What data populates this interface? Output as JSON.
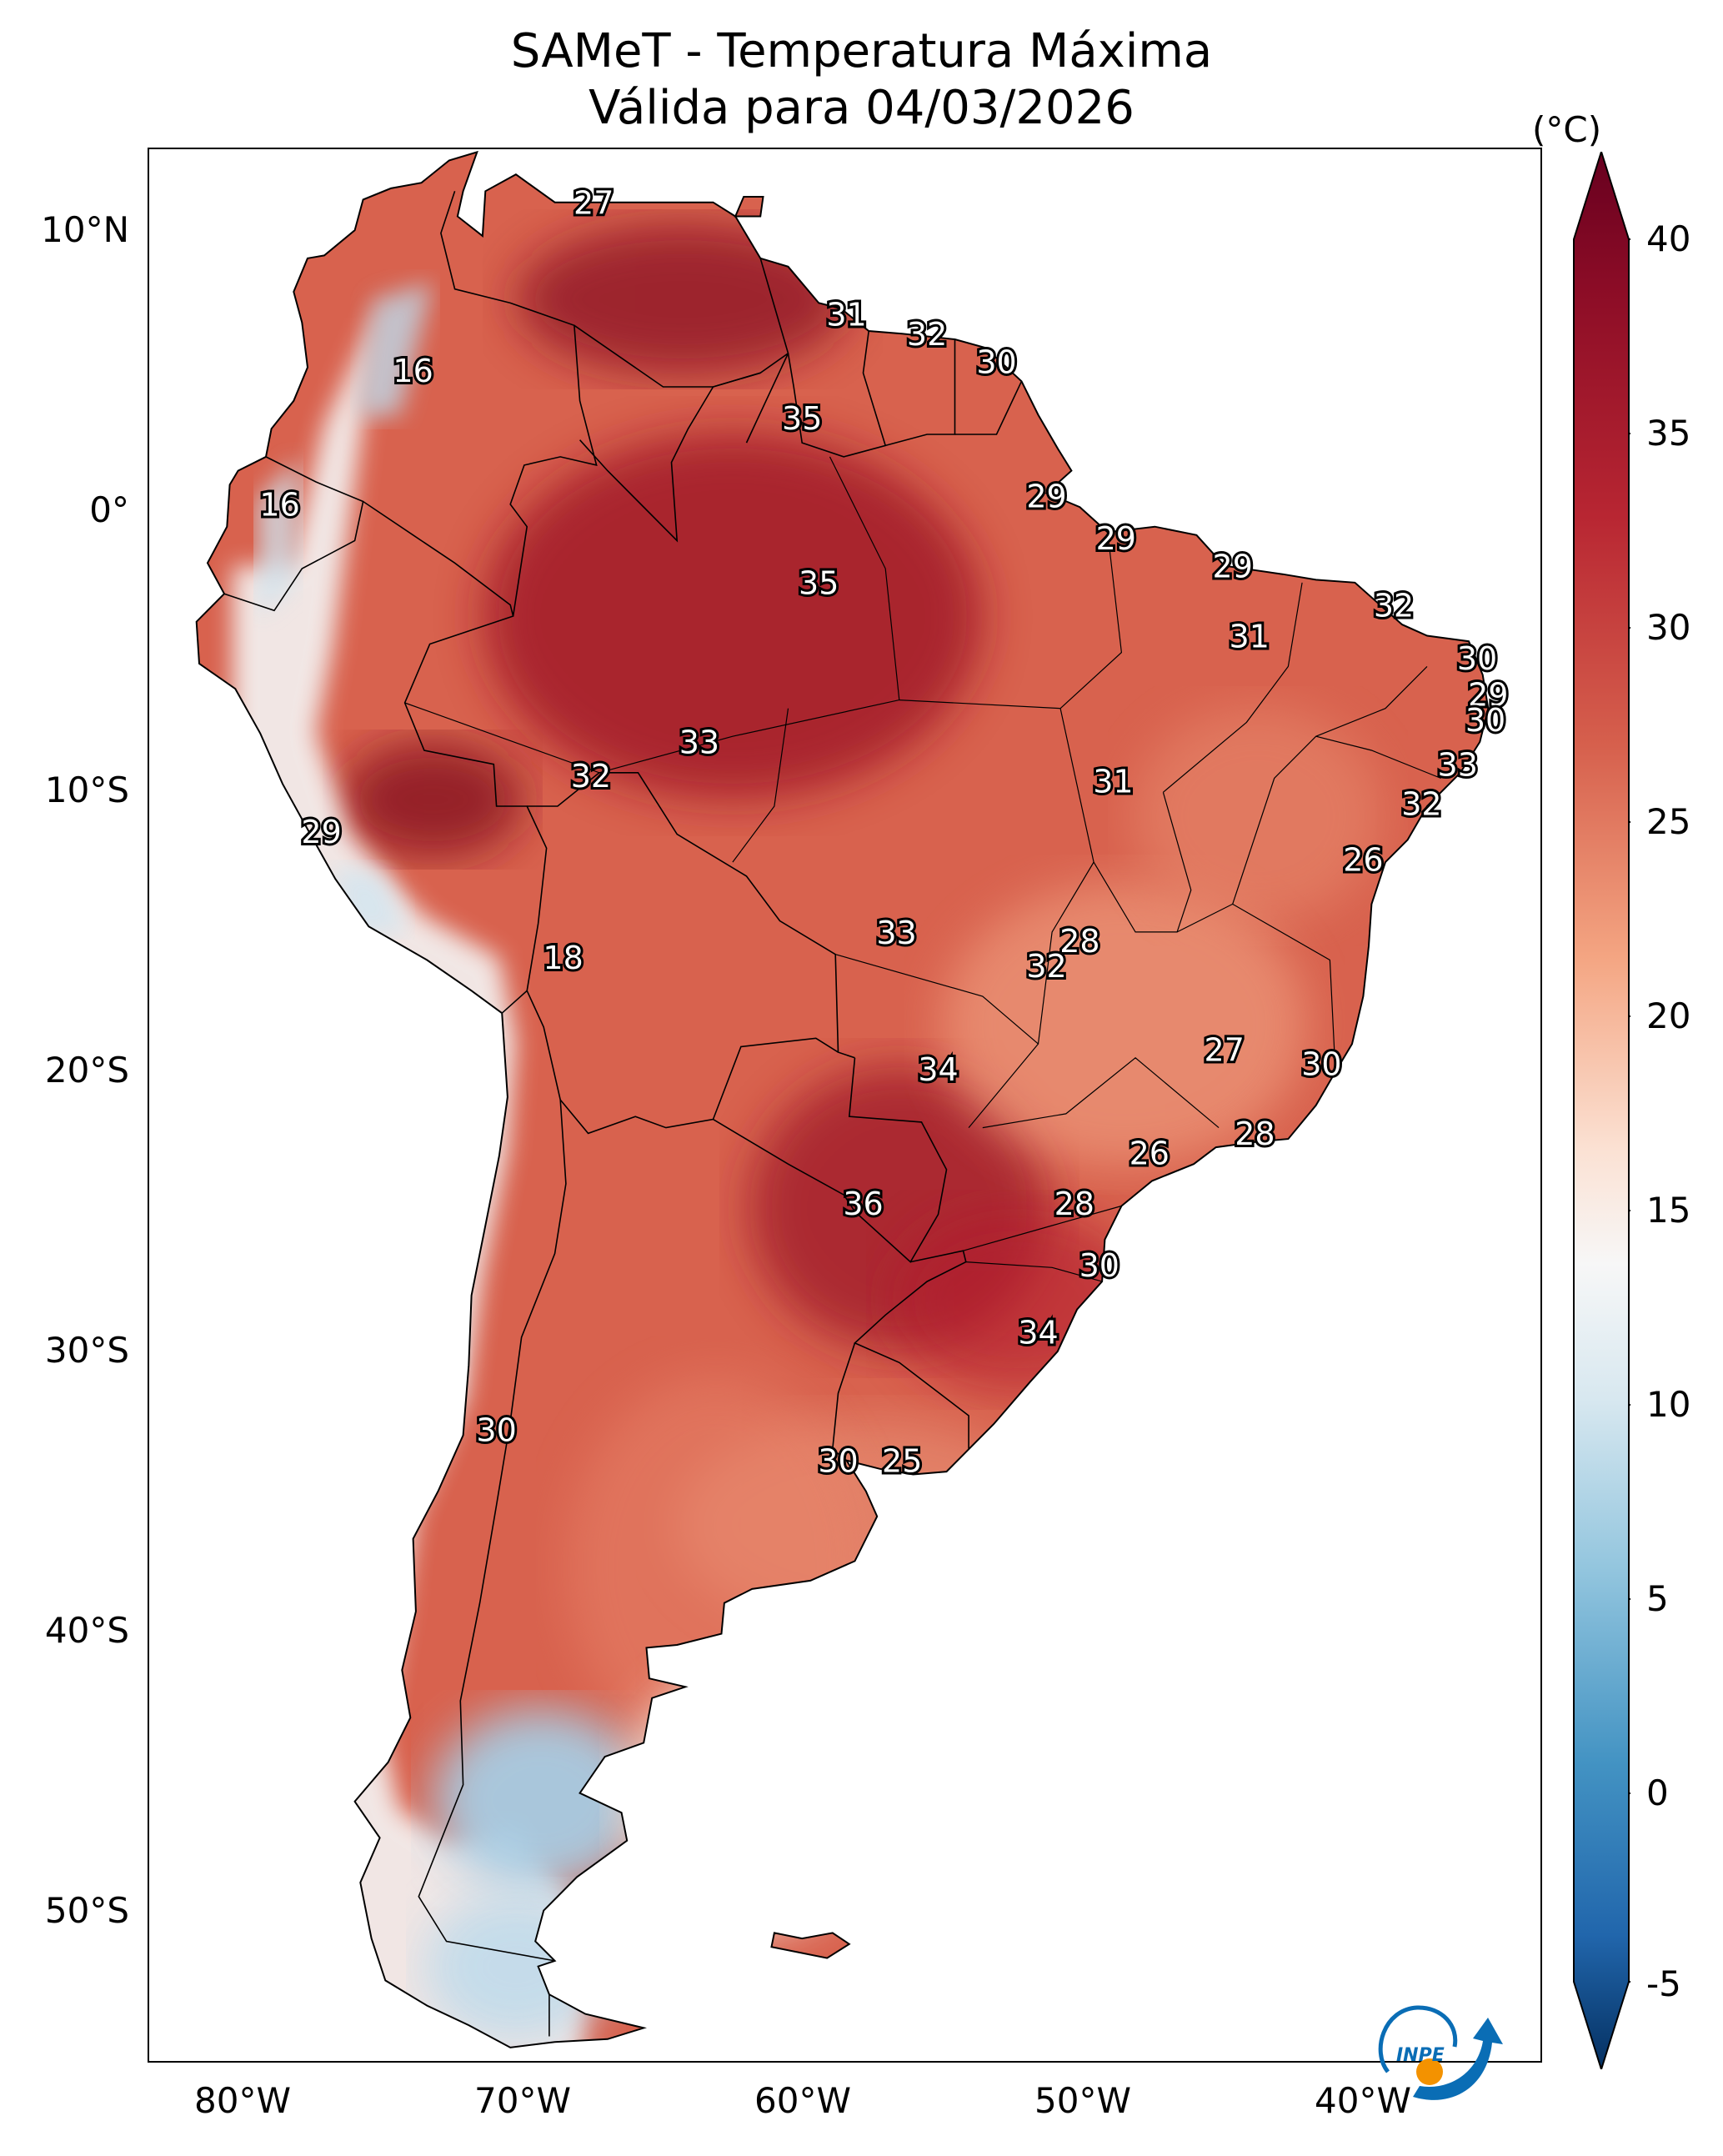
{
  "title": {
    "line1": "SAMeT - Temperatura Máxima",
    "line2": "Válida para 04/03/2026"
  },
  "axes": {
    "lat_labels": [
      "10°N",
      "0°",
      "10°S",
      "20°S",
      "30°S",
      "40°S",
      "50°S"
    ],
    "lon_labels": [
      "80°W",
      "70°W",
      "60°W",
      "50°W",
      "40°W"
    ]
  },
  "colorbar": {
    "unit": "(°C)",
    "ticks": [
      "40",
      "35",
      "30",
      "25",
      "20",
      "15",
      "10",
      "5",
      "0",
      "-5"
    ],
    "min": -7,
    "max": 41,
    "colors": {
      "hot": "#67001f",
      "warm": "#d6604d",
      "neutral": "#f7f7f7",
      "cool": "#4393c3",
      "cold": "#053061"
    }
  },
  "map": {
    "ocean_color": "#ffffff",
    "land_color": "#d8624e",
    "temperature_labels": [
      {
        "value": "27",
        "lon": -67,
        "lat": 10.5
      },
      {
        "value": "31",
        "lon": -57.9,
        "lat": 6.5
      },
      {
        "value": "32",
        "lon": -55,
        "lat": 5.8
      },
      {
        "value": "30",
        "lon": -52.5,
        "lat": 4.8
      },
      {
        "value": "16",
        "lon": -73.5,
        "lat": 4.5
      },
      {
        "value": "35",
        "lon": -59.5,
        "lat": 2.8
      },
      {
        "value": "29",
        "lon": -50.7,
        "lat": 0
      },
      {
        "value": "16",
        "lon": -78.3,
        "lat": -0.3
      },
      {
        "value": "29",
        "lon": -48.2,
        "lat": -1.5
      },
      {
        "value": "35",
        "lon": -58.9,
        "lat": -3.1
      },
      {
        "value": "29",
        "lon": -44,
        "lat": -2.5
      },
      {
        "value": "32",
        "lon": -38.2,
        "lat": -3.9
      },
      {
        "value": "31",
        "lon": -43.4,
        "lat": -5
      },
      {
        "value": "30",
        "lon": -35.2,
        "lat": -5.8
      },
      {
        "value": "29",
        "lon": -34.8,
        "lat": -7.1
      },
      {
        "value": "30",
        "lon": -34.9,
        "lat": -8
      },
      {
        "value": "33",
        "lon": -63.2,
        "lat": -8.8
      },
      {
        "value": "32",
        "lon": -67.1,
        "lat": -10
      },
      {
        "value": "33",
        "lon": -35.9,
        "lat": -9.6
      },
      {
        "value": "31",
        "lon": -48.3,
        "lat": -10.2
      },
      {
        "value": "32",
        "lon": -37.2,
        "lat": -11
      },
      {
        "value": "29",
        "lon": -76.8,
        "lat": -12
      },
      {
        "value": "26",
        "lon": -39.3,
        "lat": -13
      },
      {
        "value": "28",
        "lon": -49.5,
        "lat": -15.9
      },
      {
        "value": "33",
        "lon": -56.1,
        "lat": -15.6
      },
      {
        "value": "18",
        "lon": -68.1,
        "lat": -16.5
      },
      {
        "value": "32",
        "lon": -50.7,
        "lat": -16.8
      },
      {
        "value": "27",
        "lon": -44.3,
        "lat": -19.8
      },
      {
        "value": "30",
        "lon": -40.8,
        "lat": -20.3
      },
      {
        "value": "34",
        "lon": -54.6,
        "lat": -20.5
      },
      {
        "value": "28",
        "lon": -43.2,
        "lat": -22.8
      },
      {
        "value": "26",
        "lon": -47,
        "lat": -23.5
      },
      {
        "value": "36",
        "lon": -57.3,
        "lat": -25.3
      },
      {
        "value": "28",
        "lon": -49.7,
        "lat": -25.3
      },
      {
        "value": "30",
        "lon": -48.8,
        "lat": -27.5
      },
      {
        "value": "34",
        "lon": -51,
        "lat": -29.9
      },
      {
        "value": "30",
        "lon": -70.5,
        "lat": -33.4
      },
      {
        "value": "30",
        "lon": -58.2,
        "lat": -34.5
      },
      {
        "value": "25",
        "lon": -55.9,
        "lat": -34.5
      }
    ]
  },
  "logo": {
    "text": "INPE",
    "colors": {
      "blue": "#0a6db5",
      "orange": "#f39200"
    }
  }
}
